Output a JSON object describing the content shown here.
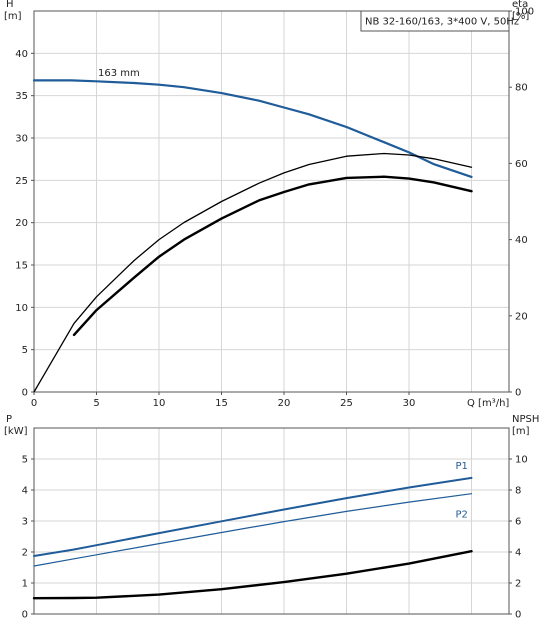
{
  "chart_data": [
    {
      "type": "line",
      "title": "NB 32-160/163, 3*400 V, 50Hz",
      "ylabel_left": "H",
      "ylabel_left_unit": "[m]",
      "ylabel_right": "eta",
      "ylabel_right_unit": "[%]",
      "xlabel": "Q [m³/h]",
      "xlim": [
        0,
        38
      ],
      "ylim_left": [
        0,
        45
      ],
      "ylim_right": [
        0,
        100
      ],
      "x_ticks": [
        "0",
        "5",
        "10",
        "15",
        "20",
        "25",
        "30"
      ],
      "y_ticks_left": [
        "0",
        "5",
        "10",
        "15",
        "20",
        "25",
        "30",
        "35",
        "40"
      ],
      "y_ticks_right": [
        "0",
        "20",
        "40",
        "60",
        "80",
        "100"
      ],
      "grid": true,
      "annotations": [
        {
          "text": "163 mm",
          "x": 3.2,
          "y": 37.3
        }
      ],
      "series": [
        {
          "key": "head",
          "axis": "left",
          "color": "#1f5c99",
          "width": 2.2,
          "x": [
            0,
            3,
            5,
            8,
            10,
            12,
            15,
            18,
            20,
            22,
            25,
            28,
            30,
            32,
            35
          ],
          "y": [
            36.8,
            36.8,
            36.7,
            36.5,
            36.3,
            36.0,
            35.3,
            34.4,
            33.6,
            32.8,
            31.3,
            29.5,
            28.3,
            26.9,
            25.4
          ]
        },
        {
          "key": "eta-thin",
          "axis": "right",
          "color": "#000000",
          "width": 1.3,
          "x": [
            0,
            3.2,
            5,
            8,
            10,
            12,
            15,
            18,
            20,
            22,
            25,
            28,
            30,
            32,
            35
          ],
          "y": [
            0,
            18,
            25,
            34.5,
            40,
            44.5,
            50,
            54.8,
            57.5,
            59.7,
            61.9,
            62.6,
            62.2,
            61.2,
            59.0
          ]
        },
        {
          "key": "eta-thick",
          "axis": "right",
          "color": "#000000",
          "width": 2.4,
          "x": [
            3.2,
            5,
            8,
            10,
            12,
            15,
            18,
            20,
            22,
            25,
            28,
            30,
            32,
            35
          ],
          "y": [
            15,
            21.5,
            30,
            35.5,
            40,
            45.5,
            50.3,
            52.5,
            54.5,
            56.2,
            56.5,
            56.0,
            55.0,
            52.7
          ]
        }
      ]
    },
    {
      "type": "line",
      "ylabel_left": "P",
      "ylabel_left_unit": "[kW]",
      "ylabel_right": "NPSH",
      "ylabel_right_unit": "[m]",
      "xlim": [
        0,
        38
      ],
      "ylim_left": [
        0,
        6
      ],
      "ylim_right": [
        0,
        12
      ],
      "y_ticks_left": [
        "0",
        "1",
        "2",
        "3",
        "4",
        "5"
      ],
      "y_ticks_right": [
        "0",
        "2",
        "4",
        "6",
        "8",
        "10"
      ],
      "grid": true,
      "series": [
        {
          "name": "P1",
          "axis": "left",
          "color": "#1f5c99",
          "width": 2.0,
          "x": [
            0,
            3.2,
            5,
            10,
            15,
            20,
            25,
            30,
            35
          ],
          "y": [
            1.87,
            2.08,
            2.22,
            2.61,
            2.99,
            3.37,
            3.74,
            4.08,
            4.39
          ]
        },
        {
          "name": "P2",
          "axis": "left",
          "color": "#1f5c99",
          "width": 1.2,
          "x": [
            0,
            3.2,
            5,
            10,
            15,
            20,
            25,
            30,
            35
          ],
          "y": [
            1.55,
            1.78,
            1.91,
            2.27,
            2.63,
            2.98,
            3.31,
            3.61,
            3.88
          ]
        },
        {
          "key": "npsh",
          "axis": "right",
          "color": "#000000",
          "width": 2.4,
          "x": [
            0,
            3.2,
            5,
            10,
            15,
            20,
            25,
            30,
            35
          ],
          "y": [
            1.02,
            1.03,
            1.05,
            1.25,
            1.6,
            2.06,
            2.6,
            3.25,
            4.05
          ]
        }
      ],
      "series_label_text": [
        "P1",
        "P2"
      ]
    }
  ]
}
